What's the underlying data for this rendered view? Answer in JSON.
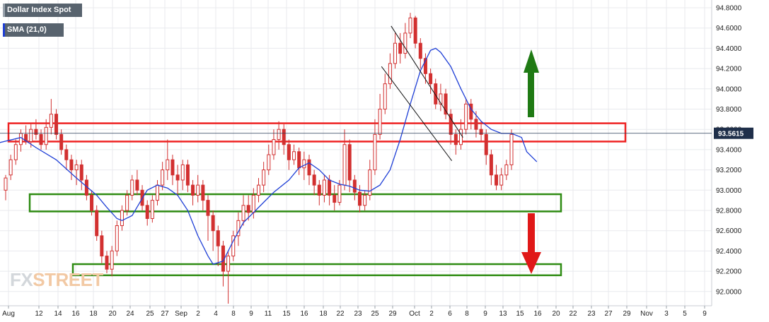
{
  "legend": {
    "instrument": "Dollar Index Spot",
    "indicator": "SMA (21,0)",
    "instrument_color": "#58636e",
    "indicator_color": "#1f3fd6"
  },
  "watermark": {
    "part_a": "FX",
    "part_b": "STREET"
  },
  "colors": {
    "candle": "#d23030",
    "sma": "#1f3fd6",
    "resistance_box": "#ee2222",
    "support_box": "#2e8b12",
    "up_arrow": "#1f7a14",
    "down_arrow": "#e01818",
    "last_price_bg": "#1f2f4a",
    "grid": "#e8eaee"
  },
  "icons": {
    "up": "up-arrow-icon",
    "down": "down-arrow-icon"
  },
  "chart_data": {
    "type": "candlestick",
    "instrument": "Dollar Index Spot",
    "last_price": "93.5615",
    "y_ticks": [
      "94.8000",
      "94.6000",
      "94.4000",
      "94.2000",
      "94.0000",
      "93.8000",
      "93.6000",
      "93.4000",
      "93.2000",
      "93.0000",
      "92.8000",
      "92.6000",
      "92.4000",
      "92.2000",
      "92.0000"
    ],
    "ylim": [
      91.88,
      94.86
    ],
    "x_ticks": [
      "Aug",
      "12",
      "14",
      "16",
      "18",
      "20",
      "24",
      "25",
      "27",
      "Sep",
      "2",
      "4",
      "8",
      "9",
      "11",
      "15",
      "16",
      "18",
      "22",
      "23",
      "25",
      "29",
      "Oct",
      "2",
      "6",
      "8",
      "9",
      "13",
      "15",
      "16",
      "20",
      "22",
      "23",
      "27",
      "29",
      "Nov",
      "3",
      "5",
      "9"
    ],
    "grid": true,
    "sma_21": [
      [
        -2,
        93.46
      ],
      [
        3,
        93.52
      ],
      [
        6,
        93.42
      ],
      [
        10,
        93.3
      ],
      [
        14,
        93.12
      ],
      [
        18,
        92.95
      ],
      [
        20,
        92.83
      ],
      [
        22,
        92.72
      ],
      [
        23,
        92.7
      ],
      [
        25,
        92.75
      ],
      [
        27,
        92.92
      ],
      [
        28,
        93.0
      ],
      [
        30,
        93.05
      ],
      [
        32,
        93.02
      ],
      [
        34,
        92.95
      ],
      [
        36,
        92.8
      ],
      [
        38,
        92.55
      ],
      [
        40,
        92.35
      ],
      [
        41,
        92.27
      ],
      [
        43,
        92.3
      ],
      [
        45,
        92.5
      ],
      [
        47,
        92.68
      ],
      [
        49,
        92.78
      ],
      [
        51,
        92.88
      ],
      [
        53,
        92.98
      ],
      [
        56,
        93.1
      ],
      [
        58,
        93.22
      ],
      [
        60,
        93.27
      ],
      [
        62,
        93.2
      ],
      [
        64,
        93.1
      ],
      [
        66,
        93.06
      ],
      [
        68,
        93.04
      ],
      [
        70,
        93.0
      ],
      [
        72,
        92.99
      ],
      [
        74,
        93.05
      ],
      [
        76,
        93.2
      ],
      [
        78,
        93.5
      ],
      [
        80,
        93.85
      ],
      [
        82,
        94.18
      ],
      [
        84,
        94.38
      ],
      [
        85,
        94.4
      ],
      [
        86,
        94.36
      ],
      [
        88,
        94.22
      ],
      [
        90,
        94.0
      ],
      [
        92,
        93.8
      ],
      [
        94,
        93.68
      ],
      [
        96,
        93.6
      ],
      [
        98,
        93.56
      ],
      [
        100,
        93.56
      ],
      [
        102,
        93.52
      ],
      [
        103,
        93.38
      ],
      [
        105,
        93.28
      ]
    ],
    "zones": [
      {
        "name": "resistance",
        "low": 93.48,
        "high": 93.66
      },
      {
        "name": "support",
        "low": 92.79,
        "high": 92.96
      },
      {
        "name": "support-lower",
        "low": 92.16,
        "high": 92.27
      }
    ],
    "channel_lines": [
      {
        "from": [
          76.2,
          94.62
        ],
        "to": [
          90.4,
          93.52
        ]
      },
      {
        "from": [
          74.3,
          94.22
        ],
        "to": [
          88.2,
          93.29
        ]
      }
    ],
    "candles": [
      [
        93.0,
        93.12,
        92.9,
        93.15
      ],
      [
        93.15,
        93.3,
        93.1,
        93.35
      ],
      [
        93.3,
        93.45,
        93.25,
        93.5
      ],
      [
        93.45,
        93.56,
        93.38,
        93.6
      ],
      [
        93.55,
        93.48,
        93.45,
        93.64
      ],
      [
        93.48,
        93.6,
        93.42,
        93.66
      ],
      [
        93.6,
        93.55,
        93.5,
        93.7
      ],
      [
        93.55,
        93.45,
        93.4,
        93.6
      ],
      [
        93.45,
        93.62,
        93.4,
        93.7
      ],
      [
        93.62,
        93.75,
        93.55,
        93.9
      ],
      [
        93.75,
        93.55,
        93.5,
        93.8
      ],
      [
        93.55,
        93.4,
        93.35,
        93.6
      ],
      [
        93.4,
        93.3,
        93.2,
        93.45
      ],
      [
        93.3,
        93.2,
        93.1,
        93.35
      ],
      [
        93.2,
        93.25,
        93.05,
        93.3
      ],
      [
        93.25,
        93.1,
        93.0,
        93.3
      ],
      [
        93.1,
        92.95,
        92.9,
        93.15
      ],
      [
        92.95,
        92.8,
        92.75,
        93.0
      ],
      [
        92.8,
        92.55,
        92.5,
        92.85
      ],
      [
        92.55,
        92.35,
        92.28,
        92.6
      ],
      [
        92.35,
        92.22,
        92.18,
        92.4
      ],
      [
        92.22,
        92.4,
        92.15,
        92.45
      ],
      [
        92.4,
        92.65,
        92.35,
        92.7
      ],
      [
        92.65,
        92.8,
        92.6,
        92.85
      ],
      [
        92.8,
        92.95,
        92.75,
        93.0
      ],
      [
        92.95,
        93.1,
        92.9,
        93.15
      ],
      [
        93.1,
        93.0,
        92.95,
        93.2
      ],
      [
        93.0,
        92.85,
        92.8,
        93.05
      ],
      [
        92.85,
        92.72,
        92.65,
        92.9
      ],
      [
        92.72,
        92.9,
        92.68,
        92.95
      ],
      [
        92.9,
        93.05,
        92.85,
        93.1
      ],
      [
        93.05,
        93.2,
        93.0,
        93.28
      ],
      [
        93.2,
        93.3,
        93.1,
        93.5
      ],
      [
        93.3,
        93.15,
        93.05,
        93.35
      ],
      [
        93.15,
        93.1,
        92.95,
        93.25
      ],
      [
        93.1,
        93.25,
        93.0,
        93.3
      ],
      [
        93.25,
        93.05,
        92.98,
        93.3
      ],
      [
        93.05,
        92.95,
        92.85,
        93.1
      ],
      [
        92.95,
        93.05,
        92.88,
        93.15
      ],
      [
        93.05,
        92.9,
        92.8,
        93.1
      ],
      [
        92.9,
        92.75,
        92.5,
        92.95
      ],
      [
        92.75,
        92.6,
        92.4,
        92.8
      ],
      [
        92.6,
        92.45,
        92.25,
        92.65
      ],
      [
        92.45,
        92.2,
        92.05,
        92.5
      ],
      [
        92.2,
        92.35,
        91.88,
        92.4
      ],
      [
        92.35,
        92.55,
        92.3,
        92.6
      ],
      [
        92.55,
        92.7,
        92.45,
        92.78
      ],
      [
        92.7,
        92.85,
        92.65,
        92.95
      ],
      [
        92.85,
        92.78,
        92.7,
        92.95
      ],
      [
        92.78,
        92.95,
        92.72,
        93.02
      ],
      [
        92.95,
        93.05,
        92.88,
        93.12
      ],
      [
        93.05,
        93.2,
        92.98,
        93.28
      ],
      [
        93.2,
        93.35,
        93.15,
        93.45
      ],
      [
        93.35,
        93.5,
        93.3,
        93.6
      ],
      [
        93.5,
        93.6,
        93.4,
        93.68
      ],
      [
        93.6,
        93.45,
        93.35,
        93.65
      ],
      [
        93.45,
        93.3,
        93.2,
        93.5
      ],
      [
        93.3,
        93.38,
        93.25,
        93.45
      ],
      [
        93.38,
        93.22,
        93.15,
        93.42
      ],
      [
        93.22,
        93.3,
        93.1,
        93.38
      ],
      [
        93.3,
        93.15,
        93.05,
        93.35
      ],
      [
        93.15,
        93.05,
        92.95,
        93.2
      ],
      [
        93.05,
        92.95,
        92.85,
        93.1
      ],
      [
        92.95,
        93.1,
        92.88,
        93.15
      ],
      [
        93.1,
        92.95,
        92.85,
        93.15
      ],
      [
        92.95,
        92.88,
        92.8,
        93.05
      ],
      [
        92.88,
        93.05,
        92.85,
        93.1
      ],
      [
        93.05,
        93.45,
        93.0,
        93.6
      ],
      [
        93.45,
        93.1,
        92.98,
        93.5
      ],
      [
        93.1,
        92.98,
        92.9,
        93.15
      ],
      [
        92.98,
        92.85,
        92.78,
        93.05
      ],
      [
        92.85,
        92.95,
        92.8,
        93.0
      ],
      [
        92.95,
        93.2,
        92.9,
        93.3
      ],
      [
        93.2,
        93.55,
        93.15,
        93.7
      ],
      [
        93.55,
        93.8,
        93.5,
        93.95
      ],
      [
        93.8,
        94.05,
        93.75,
        94.15
      ],
      [
        94.05,
        94.25,
        94.0,
        94.35
      ],
      [
        94.25,
        94.45,
        94.2,
        94.55
      ],
      [
        94.45,
        94.35,
        94.25,
        94.55
      ],
      [
        94.35,
        94.55,
        94.3,
        94.65
      ],
      [
        94.55,
        94.7,
        94.5,
        94.75
      ],
      [
        94.7,
        94.45,
        94.4,
        94.72
      ],
      [
        94.45,
        94.3,
        94.2,
        94.5
      ],
      [
        94.3,
        94.15,
        94.05,
        94.35
      ],
      [
        94.15,
        94.05,
        93.95,
        94.2
      ],
      [
        94.05,
        93.85,
        93.8,
        94.1
      ],
      [
        93.85,
        93.95,
        93.78,
        94.05
      ],
      [
        93.95,
        93.75,
        93.7,
        94.0
      ],
      [
        93.75,
        93.55,
        93.45,
        93.8
      ],
      [
        93.55,
        93.45,
        93.35,
        93.6
      ],
      [
        93.45,
        93.6,
        93.4,
        93.7
      ],
      [
        93.6,
        93.85,
        93.55,
        93.9
      ],
      [
        93.85,
        93.7,
        93.6,
        93.9
      ],
      [
        93.7,
        93.6,
        93.52,
        93.78
      ],
      [
        93.6,
        93.55,
        93.48,
        93.68
      ],
      [
        93.55,
        93.35,
        93.25,
        93.6
      ],
      [
        93.35,
        93.15,
        93.05,
        93.4
      ],
      [
        93.15,
        93.05,
        93.0,
        93.25
      ],
      [
        93.05,
        93.15,
        93.0,
        93.22
      ],
      [
        93.15,
        93.25,
        93.1,
        93.3
      ],
      [
        93.25,
        93.55,
        93.2,
        93.6
      ]
    ]
  }
}
